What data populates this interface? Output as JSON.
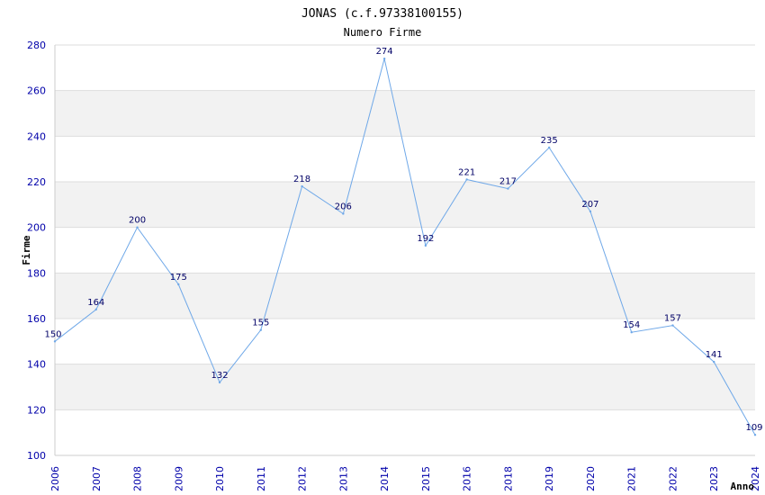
{
  "chart_data": {
    "type": "line",
    "title": "JONAS (c.f.97338100155)",
    "subtitle": "Numero Firme",
    "xlabel": "Anno",
    "ylabel": "Firme",
    "categories": [
      "2006",
      "2007",
      "2008",
      "2009",
      "2010",
      "2011",
      "2012",
      "2013",
      "2014",
      "2015",
      "2016",
      "2018",
      "2019",
      "2020",
      "2021",
      "2022",
      "2023",
      "2024"
    ],
    "values": [
      150,
      164,
      200,
      175,
      132,
      155,
      218,
      206,
      274,
      192,
      221,
      217,
      235,
      207,
      154,
      157,
      141,
      109
    ],
    "ylim": [
      100,
      280
    ],
    "yticks": [
      "100",
      "120",
      "140",
      "160",
      "180",
      "200",
      "220",
      "240",
      "260",
      "280"
    ],
    "grid": true,
    "colors": {
      "line": "#6fa8e8",
      "band": "#f2f2f2",
      "grid": "#dddddd",
      "tick_text": "#0000aa",
      "label_text": "#000066"
    }
  }
}
